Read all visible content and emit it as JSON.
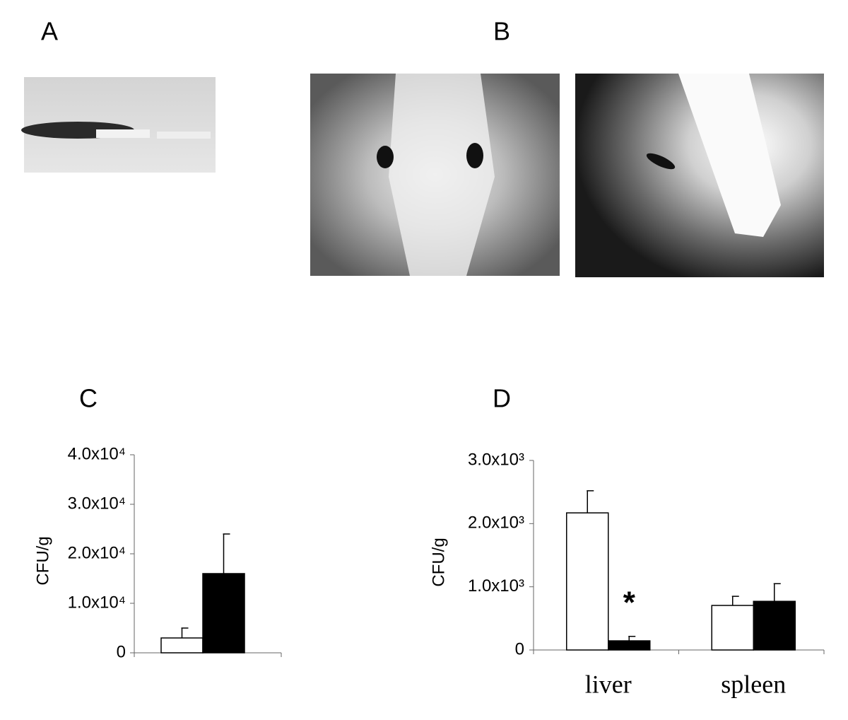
{
  "panel_labels": [
    "A",
    "B",
    "C",
    "D"
  ],
  "chart_data": [
    {
      "type": "bar",
      "ylabel": "CFU/g",
      "categories": [
        null
      ],
      "series": [
        {
          "color": "#ffffff",
          "values": [
            3000
          ],
          "errors": [
            2000
          ]
        },
        {
          "color": "#000000",
          "values": [
            16000
          ],
          "errors": [
            8000
          ]
        }
      ],
      "ylim": [
        0,
        40000
      ],
      "yticks": [
        0,
        {
          "value": 10000,
          "label": "1.0x10⁴"
        },
        {
          "value": 20000,
          "label": "2.0x10⁴"
        },
        {
          "value": 30000,
          "label": "3.0x10⁴"
        },
        {
          "value": 40000,
          "label": "4.0x10⁴"
        }
      ]
    },
    {
      "type": "bar",
      "ylabel": "CFU/g",
      "categories": [
        "liver",
        "spleen"
      ],
      "series": [
        {
          "color": "#ffffff",
          "values": [
            2170,
            705
          ],
          "errors": [
            350,
            145
          ]
        },
        {
          "color": "#000000",
          "values": [
            145,
            770
          ],
          "errors": [
            70,
            280
          ]
        }
      ],
      "annotation": "*",
      "ylim": [
        0,
        3000
      ],
      "yticks": [
        0,
        {
          "value": 1000,
          "label": "1.0x10³"
        },
        {
          "value": 2000,
          "label": "2.0x10³"
        },
        {
          "value": 3000,
          "label": "3.0x10³"
        }
      ]
    }
  ]
}
